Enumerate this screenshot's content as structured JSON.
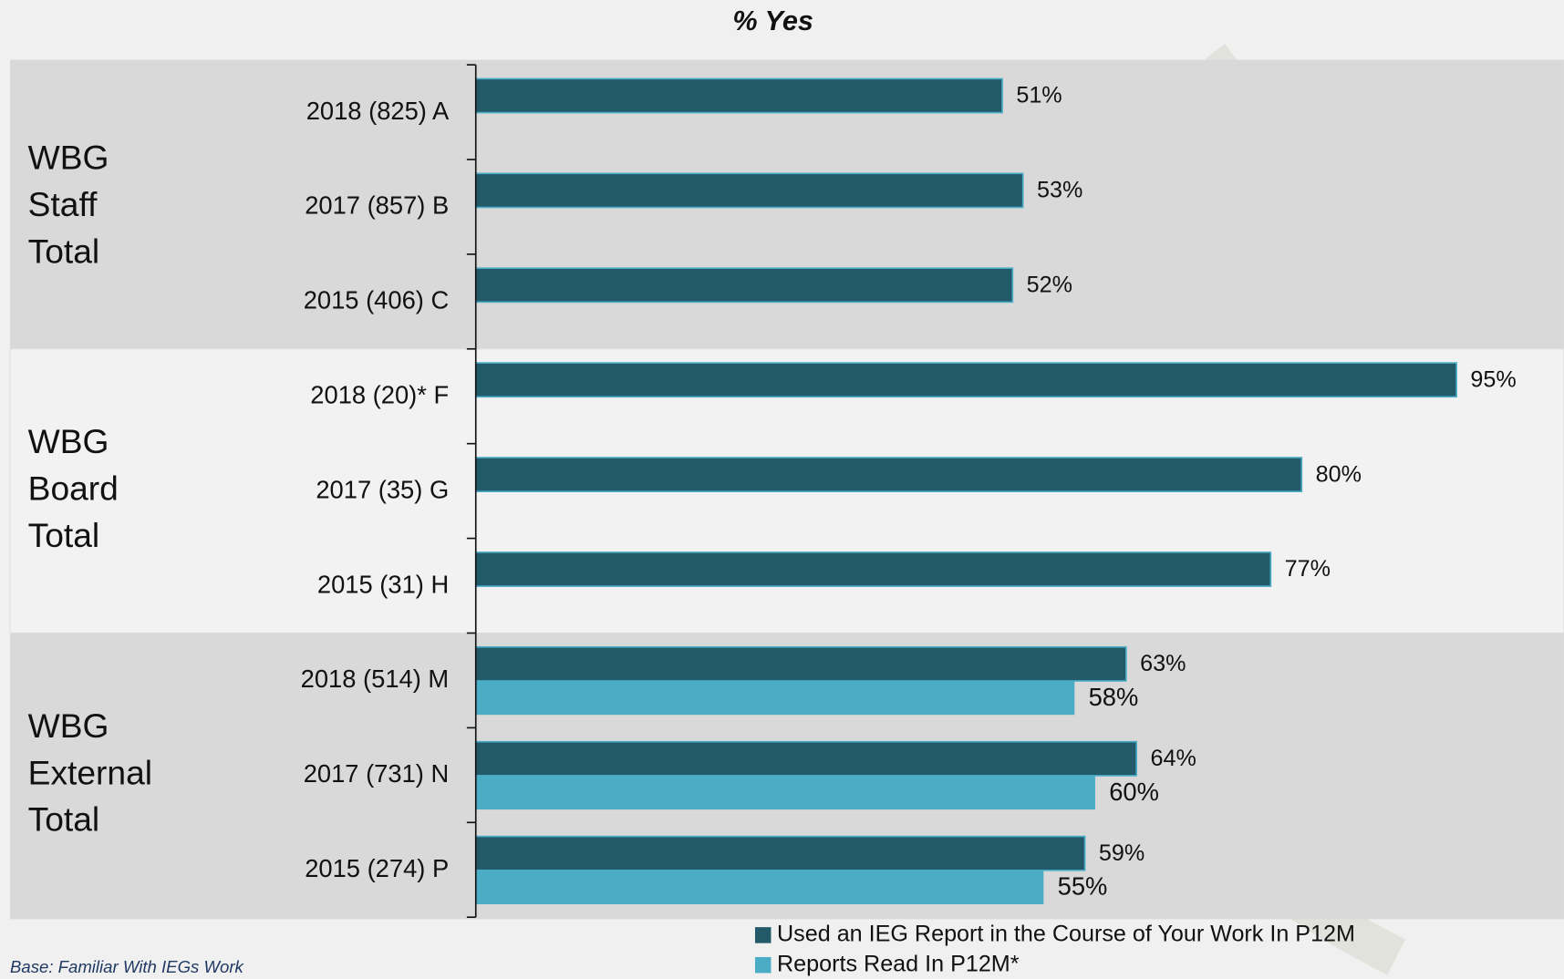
{
  "chart_data": {
    "type": "bar",
    "orientation": "horizontal",
    "title": "% Yes",
    "groups": [
      {
        "label": "WBG Staff Total",
        "categories": [
          "2018 (825) A",
          "2017 (857) B",
          "2015 (406) C"
        ]
      },
      {
        "label": "WBG Board Total",
        "categories": [
          "2018 (20)* F",
          "2017 (35) G",
          "2015 (31) H"
        ]
      },
      {
        "label": "WBG External Total",
        "categories": [
          "2018 (514) M",
          "2017 (731) N",
          "2015 (274) P"
        ]
      }
    ],
    "series": [
      {
        "name": "Used an IEG Report in the Course of Your Work In P12M",
        "color": "#225a6a",
        "values": [
          51,
          53,
          52,
          95,
          80,
          77,
          63,
          64,
          59
        ],
        "value_labels": [
          "51%",
          "53%",
          "52%",
          "95%",
          "80%",
          "77%",
          "63%",
          "64%",
          "59%"
        ]
      },
      {
        "name": "Reports Read In P12M*",
        "color": "#4bacc6",
        "values": [
          null,
          null,
          null,
          null,
          null,
          null,
          58,
          60,
          55
        ],
        "value_labels": [
          null,
          null,
          null,
          null,
          null,
          null,
          "58%",
          "60%",
          "55%"
        ]
      }
    ],
    "xlim": [
      0,
      100
    ],
    "footnote": "Base: Familiar With IEGs Work"
  }
}
